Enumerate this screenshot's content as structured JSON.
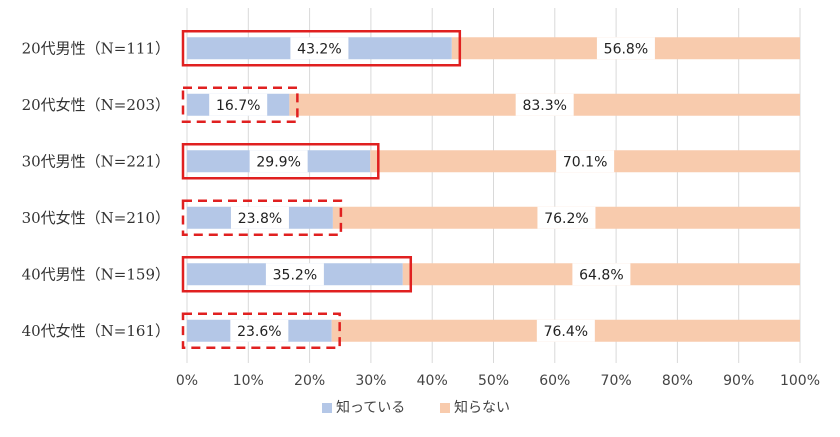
{
  "chart_data": {
    "type": "bar",
    "orientation": "horizontal",
    "stacked": "percent",
    "categories": [
      "20代男性（N=111）",
      "20代女性（N=203）",
      "30代男性（N=221）",
      "30代女性（N=210）",
      "40代男性（N=159）",
      "40代女性（N=161）"
    ],
    "series": [
      {
        "name": "知っている",
        "values": [
          43.2,
          16.7,
          29.9,
          23.8,
          35.2,
          23.6
        ],
        "color": "#b4c7e7"
      },
      {
        "name": "知らない",
        "values": [
          56.8,
          83.3,
          70.1,
          76.2,
          64.8,
          76.4
        ],
        "color": "#f8cbad"
      }
    ],
    "data_labels": [
      [
        "43.2%",
        "16.7%",
        "29.9%",
        "23.8%",
        "35.2%",
        "23.6%"
      ],
      [
        "56.8%",
        "83.3%",
        "70.1%",
        "76.2%",
        "64.8%",
        "76.4%"
      ]
    ],
    "xlim": [
      0,
      100
    ],
    "xticks": [
      "0%",
      "10%",
      "20%",
      "30%",
      "40%",
      "50%",
      "60%",
      "70%",
      "80%",
      "90%",
      "100%"
    ],
    "grid": "vertical",
    "legend": "bottom",
    "highlight": {
      "color": "#e02020",
      "styles": [
        "solid",
        "dashed",
        "solid",
        "dashed",
        "solid",
        "dashed"
      ]
    }
  }
}
